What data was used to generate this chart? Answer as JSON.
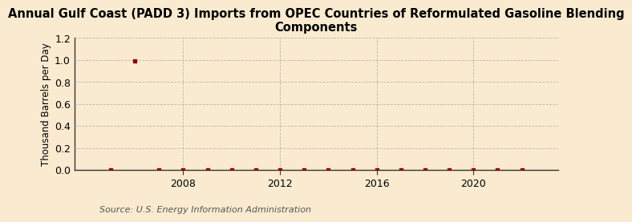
{
  "title": "Annual Gulf Coast (PADD 3) Imports from OPEC Countries of Reformulated Gasoline Blending\nComponents",
  "ylabel": "Thousand Barrels per Day",
  "source": "Source: U.S. Energy Information Administration",
  "background_color": "#faebd0",
  "plot_bg_color": "#faebd0",
  "x_data": [
    2005,
    2006,
    2007,
    2008,
    2009,
    2010,
    2011,
    2012,
    2013,
    2014,
    2015,
    2016,
    2017,
    2018,
    2019,
    2020,
    2021,
    2022
  ],
  "y_data": [
    0.0,
    0.99,
    0.0,
    0.0,
    0.0,
    0.0,
    0.0,
    0.0,
    0.0,
    0.0,
    0.0,
    0.0,
    0.0,
    0.0,
    0.0,
    0.0,
    0.0,
    0.0
  ],
  "marker_color": "#8b0000",
  "xlim": [
    2003.5,
    2023.5
  ],
  "ylim": [
    0.0,
    1.2
  ],
  "yticks": [
    0.0,
    0.2,
    0.4,
    0.6,
    0.8,
    1.0,
    1.2
  ],
  "xticks": [
    2008,
    2012,
    2016,
    2020
  ],
  "grid_color": "#b0b0b0",
  "title_fontsize": 10.5,
  "axis_fontsize": 8.5,
  "tick_fontsize": 9,
  "source_fontsize": 8
}
